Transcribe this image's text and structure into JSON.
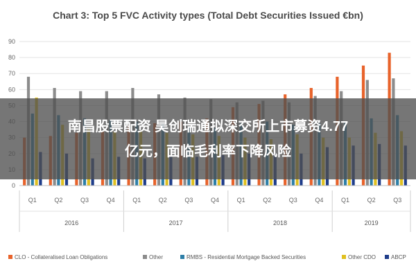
{
  "chart_data": {
    "type": "bar",
    "title": "Chart 3: Top 5 FVC Activity types (Total Debt Securities Issued €bn)",
    "xlabel": "",
    "ylabel": "",
    "ylim": [
      0,
      90
    ],
    "yticks": [
      0,
      10,
      20,
      30,
      40,
      50,
      60,
      70,
      80,
      90
    ],
    "grid": true,
    "legend_position": "bottom",
    "groups": [
      {
        "year": "2016",
        "quarters": [
          "Q1",
          "Q2",
          "Q3",
          "Q4"
        ]
      },
      {
        "year": "2017",
        "quarters": [
          "Q1",
          "Q2",
          "Q3",
          "Q4"
        ]
      },
      {
        "year": "2018",
        "quarters": [
          "Q1",
          "Q2",
          "Q3",
          "Q4"
        ]
      },
      {
        "year": "2019",
        "quarters": [
          "Q1",
          "Q2",
          "Q3"
        ]
      }
    ],
    "categories": [
      "Q1",
      "Q2",
      "Q3",
      "Q4",
      "Q1",
      "Q2",
      "Q3",
      "Q4",
      "Q1",
      "Q2",
      "Q3",
      "Q4",
      "Q1",
      "Q2",
      "Q3"
    ],
    "series": [
      {
        "name": "CLO - Collateralised Loan Obligations",
        "color": "#e8632b",
        "values": [
          30,
          31,
          33,
          34,
          38,
          39,
          40,
          42,
          49,
          51,
          57,
          61,
          68,
          75,
          83
        ]
      },
      {
        "name": "Other",
        "color": "#8c8c8c",
        "values": [
          68,
          61,
          59,
          59,
          61,
          57,
          55,
          54,
          52,
          53,
          52,
          56,
          59,
          66,
          67
        ]
      },
      {
        "name": "RMBS - Residential Mortgage Backed Securities",
        "color": "#2e7fa8",
        "values": [
          45,
          44,
          42,
          41,
          40,
          39,
          37,
          36,
          39,
          40,
          38,
          39,
          40,
          42,
          44
        ]
      },
      {
        "name": "Other CDO",
        "color": "#e0c020",
        "values": [
          55,
          38,
          36,
          34,
          34,
          33,
          32,
          31,
          30,
          29,
          32,
          30,
          30,
          33,
          34
        ]
      },
      {
        "name": "ABCP",
        "color": "#1f3d8a",
        "values": [
          21,
          20,
          17,
          18,
          17,
          18,
          18,
          19,
          20,
          20,
          20,
          24,
          25,
          26,
          25
        ]
      }
    ]
  },
  "overlay": {
    "text": "南昌股票配资 昊创瑞通拟深交所上市募资4.77\n亿元，面临毛利率下降风险"
  }
}
